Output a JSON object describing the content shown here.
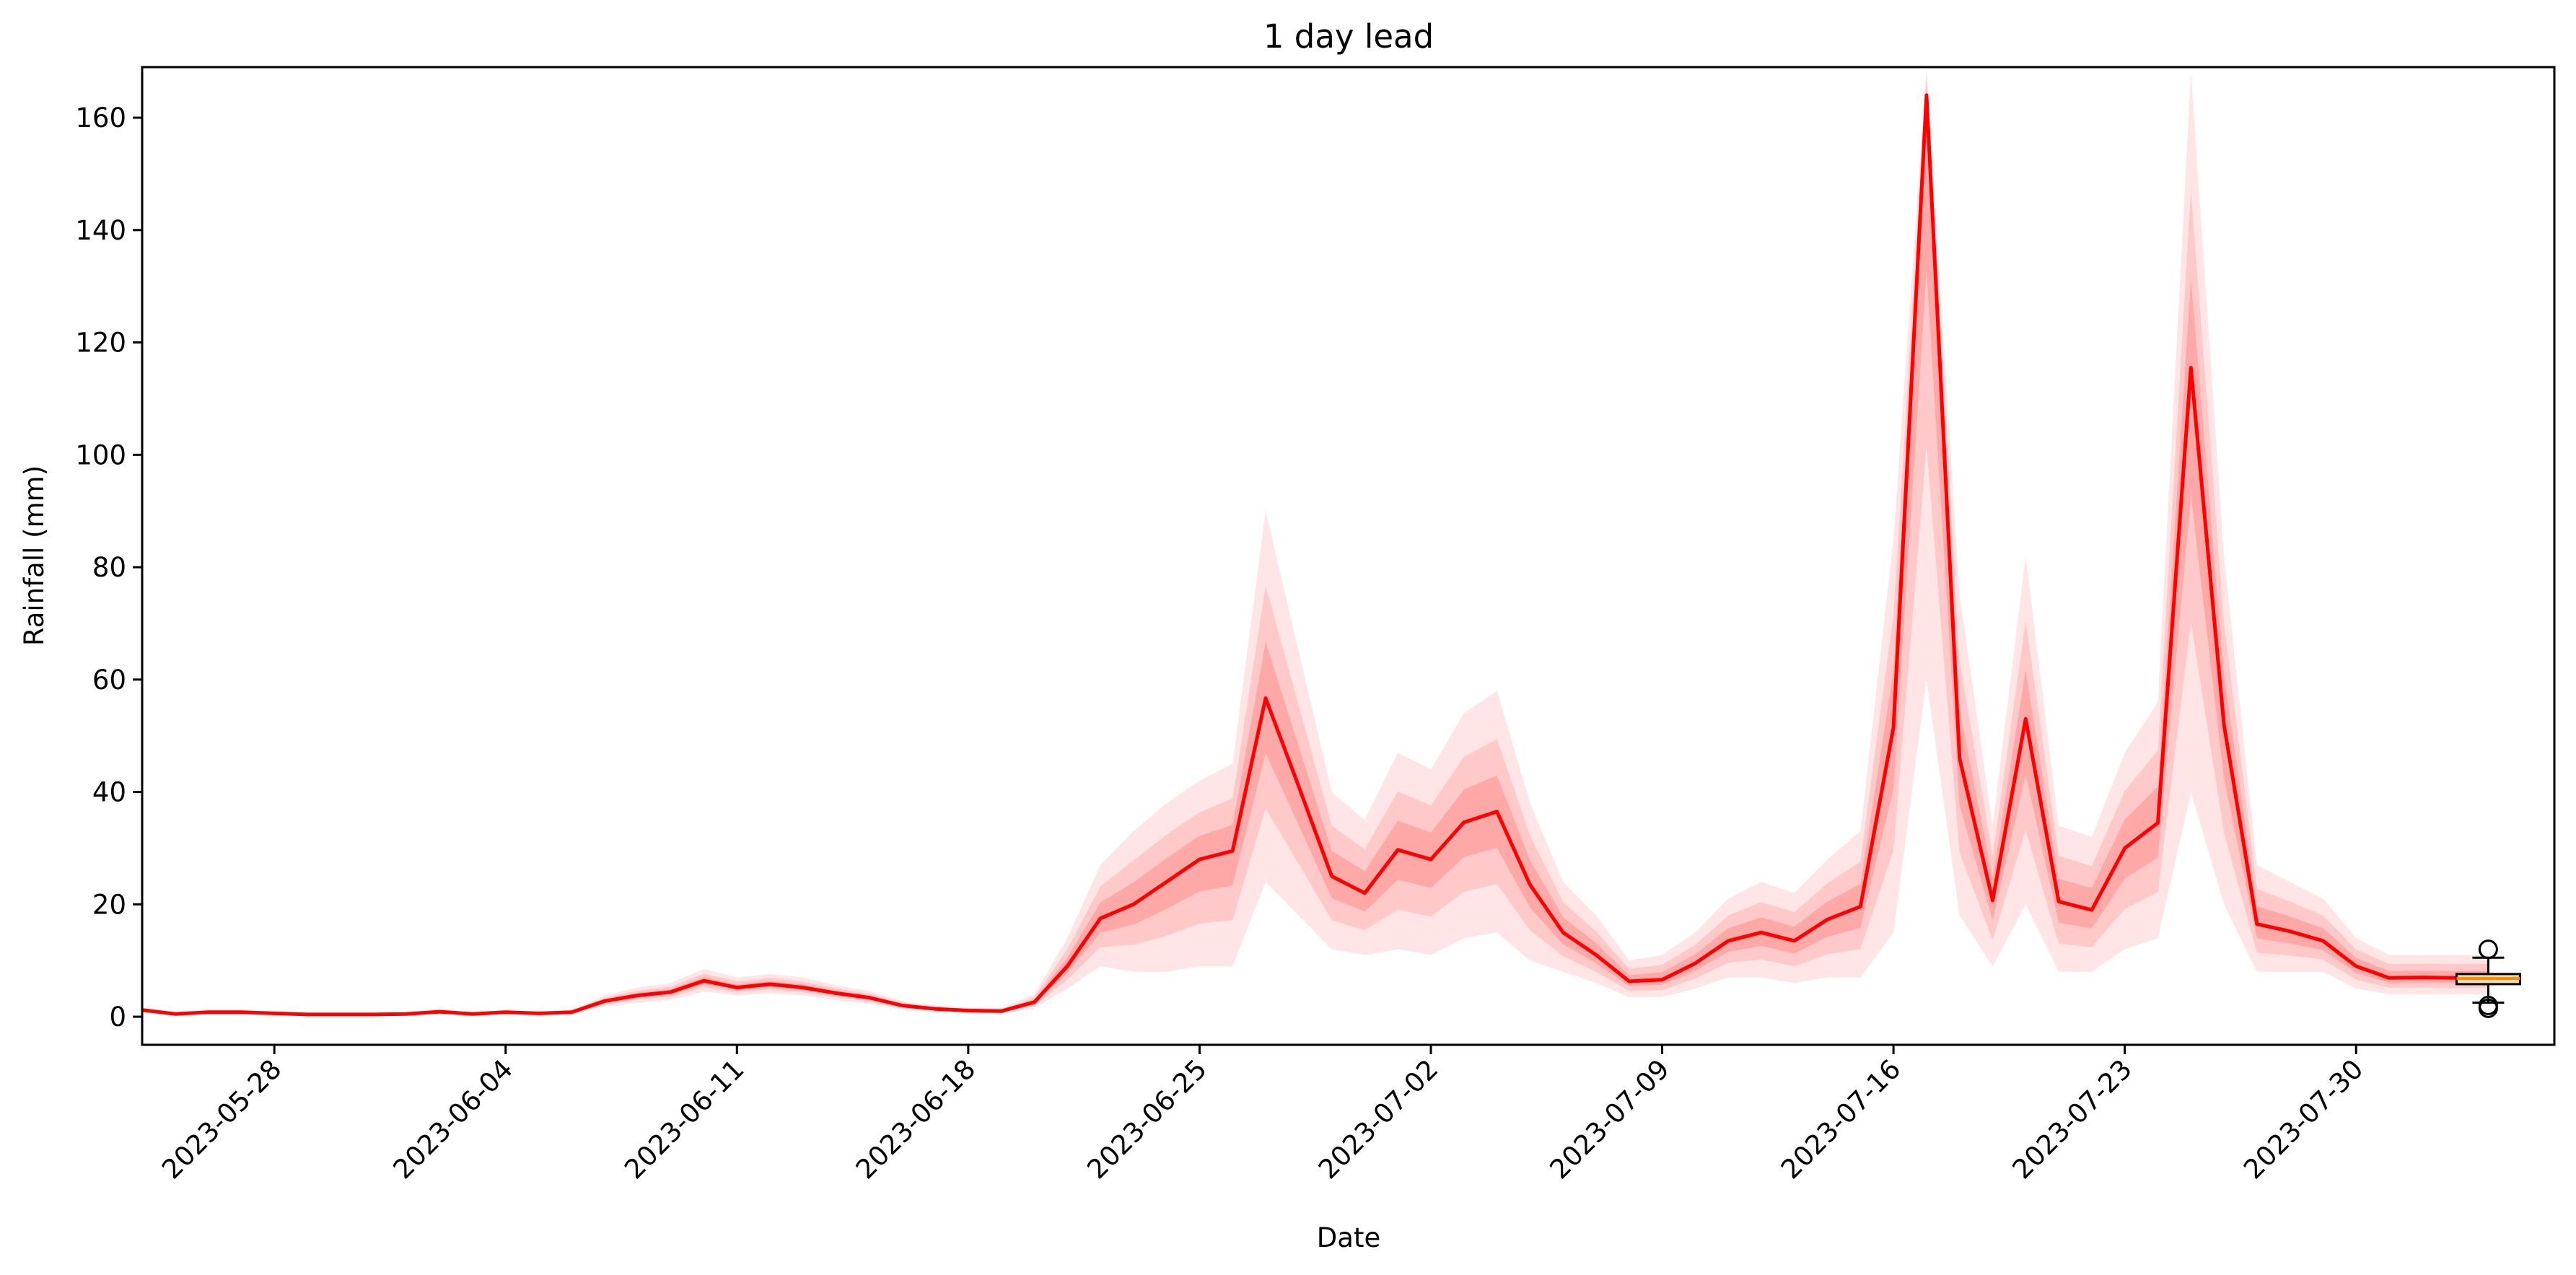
{
  "chart_data": {
    "type": "line",
    "title": "1 day lead",
    "xlabel": "Date",
    "ylabel": "Rainfall (mm)",
    "xlim": [
      "2023-05-24",
      "2023-08-05"
    ],
    "ylim": [
      -5,
      169
    ],
    "y_ticks": [
      0,
      20,
      40,
      60,
      80,
      100,
      120,
      140,
      160
    ],
    "x_ticks": [
      "2023-05-28",
      "2023-06-04",
      "2023-06-11",
      "2023-06-18",
      "2023-06-25",
      "2023-07-02",
      "2023-07-09",
      "2023-07-16",
      "2023-07-23",
      "2023-07-30"
    ],
    "grid": false,
    "colors": {
      "mean_line": "#ff0000",
      "ensemble_band": "#ff0000",
      "boxplot_box": "#fbdcb4",
      "boxplot_median": "#ff8c00"
    },
    "series": [
      {
        "x": [
          "2023-05-24",
          "2023-05-25",
          "2023-05-26",
          "2023-05-27",
          "2023-05-28",
          "2023-05-29",
          "2023-05-30",
          "2023-05-31",
          "2023-06-01",
          "2023-06-02",
          "2023-06-03",
          "2023-06-04",
          "2023-06-05",
          "2023-06-06",
          "2023-06-07",
          "2023-06-08",
          "2023-06-09",
          "2023-06-10",
          "2023-06-11",
          "2023-06-12",
          "2023-06-13",
          "2023-06-14",
          "2023-06-15",
          "2023-06-16",
          "2023-06-17",
          "2023-06-18",
          "2023-06-19",
          "2023-06-20",
          "2023-06-21",
          "2023-06-22",
          "2023-06-23",
          "2023-06-24",
          "2023-06-25",
          "2023-06-26",
          "2023-06-27",
          "2023-06-28",
          "2023-06-29",
          "2023-06-30",
          "2023-07-01",
          "2023-07-02",
          "2023-07-03",
          "2023-07-04",
          "2023-07-05",
          "2023-07-06",
          "2023-07-07",
          "2023-07-08",
          "2023-07-09",
          "2023-07-10",
          "2023-07-11",
          "2023-07-12",
          "2023-07-13",
          "2023-07-14",
          "2023-07-15",
          "2023-07-16",
          "2023-07-17",
          "2023-07-18",
          "2023-07-19",
          "2023-07-20",
          "2023-07-21",
          "2023-07-22",
          "2023-07-23",
          "2023-07-24",
          "2023-07-25",
          "2023-07-26",
          "2023-07-27",
          "2023-07-28",
          "2023-07-29",
          "2023-07-30",
          "2023-07-31",
          "2023-08-01",
          "2023-08-02",
          "2023-08-03"
        ],
        "values": [
          1.2,
          0.5,
          0.8,
          0.8,
          0.6,
          0.4,
          0.4,
          0.4,
          0.5,
          0.9,
          0.5,
          0.8,
          0.6,
          0.8,
          2.8,
          3.8,
          4.4,
          6.4,
          5.2,
          5.8,
          5.2,
          4.2,
          3.4,
          2.0,
          1.4,
          1.1,
          1.0,
          2.6,
          9.0,
          17.5,
          20.0,
          24.0,
          28.0,
          29.5,
          56.7,
          41.0,
          25.0,
          22.0,
          29.7,
          28.0,
          34.6,
          36.5,
          23.5,
          15.0,
          11.0,
          6.3,
          6.6,
          9.5,
          13.5,
          15.0,
          13.5,
          17.3,
          19.6,
          51.5,
          164.0,
          46.0,
          20.7,
          53.0,
          20.5,
          19.0,
          30.0,
          34.5,
          115.5,
          52.0,
          16.5,
          15.2,
          13.5,
          9.0,
          6.9,
          7.0,
          6.9,
          7.0
        ]
      }
    ],
    "band": {
      "lower": [
        0.8,
        0.3,
        0.5,
        0.5,
        0.4,
        0.2,
        0.2,
        0.2,
        0.3,
        0.6,
        0.3,
        0.5,
        0.4,
        0.5,
        1.8,
        2.5,
        3.0,
        4.5,
        3.8,
        4.2,
        3.8,
        3.0,
        2.3,
        1.3,
        0.9,
        0.7,
        0.6,
        1.5,
        5.0,
        9.0,
        8.0,
        8.0,
        9.0,
        9.0,
        24.0,
        18.0,
        12.0,
        11.0,
        12.0,
        11.0,
        14.0,
        15.0,
        10.0,
        8.0,
        6.0,
        3.5,
        3.5,
        5.0,
        7.0,
        7.0,
        6.0,
        7.0,
        7.0,
        15.0,
        60.0,
        18.0,
        9.0,
        20.0,
        8.0,
        8.0,
        12.0,
        14.0,
        40.0,
        20.0,
        8.0,
        8.0,
        8.0,
        5.0,
        4.0,
        4.0,
        4.0,
        4.0
      ],
      "upper": [
        1.6,
        0.8,
        1.2,
        1.2,
        0.9,
        0.7,
        0.7,
        0.7,
        0.8,
        1.3,
        0.8,
        1.2,
        0.9,
        1.2,
        3.8,
        5.2,
        6.0,
        8.5,
        7.0,
        7.6,
        7.0,
        5.6,
        4.6,
        2.8,
        2.0,
        1.6,
        1.5,
        4.0,
        14.0,
        27.0,
        33.0,
        38.0,
        42.0,
        45.0,
        90.0,
        65.0,
        40.0,
        35.0,
        47.0,
        44.0,
        54.0,
        58.0,
        38.0,
        24.0,
        18.0,
        10.0,
        11.0,
        15.0,
        21.0,
        24.0,
        22.0,
        28.0,
        33.0,
        85.0,
        169.0,
        75.0,
        34.0,
        82.0,
        34.0,
        32.0,
        47.0,
        56.0,
        168.0,
        82.0,
        27.0,
        24.0,
        21.0,
        14.0,
        11.0,
        11.0,
        11.0,
        11.0
      ]
    },
    "boxplot": {
      "x": "2023-08-03",
      "q1": 5.8,
      "median": 6.8,
      "q3": 7.6,
      "whisker_low": 2.5,
      "whisker_high": 10.5,
      "outliers": [
        1.5,
        2.0,
        12.0
      ]
    }
  }
}
